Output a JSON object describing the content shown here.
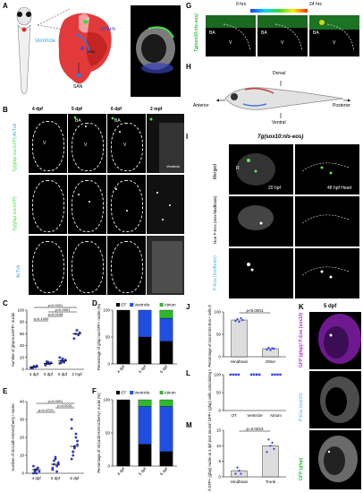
{
  "panel_labels": [
    "A",
    "B",
    "C",
    "D",
    "E",
    "F",
    "G",
    "H",
    "I",
    "J",
    "K",
    "L",
    "M"
  ],
  "panelA": {
    "ventricle": "Ventricle",
    "atrium": "Atrium",
    "avn": "AVN",
    "san": "SAN",
    "ot": "OT"
  },
  "panelB": {
    "cols": [
      "4 dpf",
      "5 dpf",
      "6 dpf",
      "2 mpf"
    ],
    "row_labels": {
      "merge_prefix": "Tg(gfap:nucGFP);",
      "merge_suffix": "AcTub",
      "gfp": "Tg(gfap:nucGFP)",
      "actub": "AcTub"
    },
    "ba": "BA",
    "v": "V",
    "ventricle": "Ventricle"
  },
  "panelG": {
    "t0": "0 hrs",
    "t1": "24 hrs",
    "side": "Tg(sox10:nls-eos)",
    "ba": "BA",
    "v": "V"
  },
  "panelH": {
    "dorsal": "Dorsal",
    "ventral": "Ventral",
    "anterior": "Anterior",
    "posterior": "Posterior"
  },
  "panelI": {
    "title": "Tg(sox10:nls-eos)",
    "rows": [
      "Merged",
      "Non P-Eos (non-hindbrain)",
      "P-Eos (hindbrain)"
    ],
    "t1": "20 hpf",
    "t2": "48 hpf Heart",
    "r": "R"
  },
  "panelK": {
    "title": "5 dpf",
    "rows": [
      "GFP (gfap)/ P-Eos (sox10)",
      "P-Eos (sox10)",
      "GFP (gfap)"
    ]
  },
  "chart_data": [
    {
      "id": "C",
      "type": "scatter",
      "ylabel": "Number of gfap:nucGFP+ nuclei",
      "categories": [
        "4 dpf",
        "5 dpf",
        "6 dpf",
        "2 mpf"
      ],
      "means": [
        4,
        10,
        14,
        60
      ],
      "ylim": [
        0,
        100
      ],
      "yticks": [
        0,
        20,
        40,
        60,
        80,
        100
      ],
      "points": [
        [
          2,
          3,
          5,
          4,
          6,
          3,
          2,
          5
        ],
        [
          8,
          10,
          12,
          9,
          11,
          7,
          13,
          10
        ],
        [
          10,
          14,
          18,
          12,
          16,
          20,
          11,
          15,
          13
        ],
        [
          52,
          60,
          66,
          58,
          62
        ]
      ],
      "pvalues": [
        {
          "from": 0,
          "to": 3,
          "label": "p<0.0001"
        },
        {
          "from": 1,
          "to": 3,
          "label": "p<0.0001"
        },
        {
          "from": 1,
          "to": 2,
          "label": "p=0.0108"
        },
        {
          "from": 0,
          "to": 1,
          "label": "p=0.1092"
        }
      ]
    },
    {
      "id": "D",
      "type": "bar",
      "stacked": true,
      "ylabel": "Percentage of gfap:nucGFP+ nuclei (%)",
      "categories": [
        "4 dpf",
        "5 dpf",
        "6 dpf"
      ],
      "series": [
        {
          "name": "OT",
          "color": "#000000",
          "values": [
            100,
            50,
            42
          ]
        },
        {
          "name": "Ventricle",
          "color": "#1f4fe0",
          "values": [
            0,
            50,
            43
          ]
        },
        {
          "name": "Atrium",
          "color": "#2db82d",
          "values": [
            0,
            0,
            15
          ]
        }
      ],
      "ylim": [
        0,
        100
      ],
      "yticks": [
        0,
        50,
        100
      ],
      "legend": "top"
    },
    {
      "id": "E",
      "type": "scatter",
      "ylabel": "Number of slc1a3b:H2AmCherry+ nuclei",
      "categories": [
        "4 dpf",
        "5 dpf",
        "6 dpf"
      ],
      "means": [
        2,
        5,
        15
      ],
      "ylim": [
        0,
        40
      ],
      "yticks": [
        0,
        10,
        20,
        30,
        40
      ],
      "points": [
        [
          0,
          1,
          2,
          3,
          1,
          4,
          2,
          0,
          3
        ],
        [
          2,
          5,
          8,
          4,
          6,
          3,
          7,
          9,
          1,
          5
        ],
        [
          8,
          12,
          15,
          20,
          18,
          25,
          10,
          14,
          22,
          16,
          30,
          12
        ]
      ],
      "pvalues": [
        {
          "from": 0,
          "to": 2,
          "label": "p<0.0001"
        },
        {
          "from": 1,
          "to": 2,
          "label": "p=0.0031"
        },
        {
          "from": 0,
          "to": 1,
          "label": "p=0.4720"
        }
      ]
    },
    {
      "id": "F",
      "type": "bar",
      "stacked": true,
      "ylabel": "Percentage of slc1a3b:H2AmCherry+ nuclei (%)",
      "categories": [
        "4 dpf",
        "5 dpf",
        "6 dpf"
      ],
      "series": [
        {
          "name": "OT",
          "color": "#000000",
          "values": [
            100,
            33,
            22
          ]
        },
        {
          "name": "Ventricle",
          "color": "#1f4fe0",
          "values": [
            0,
            57,
            68
          ]
        },
        {
          "name": "Atrium",
          "color": "#2db82d",
          "values": [
            0,
            10,
            10
          ]
        }
      ],
      "ylim": [
        0,
        100
      ],
      "yticks": [
        0,
        50,
        100
      ],
      "legend": "top"
    },
    {
      "id": "J",
      "type": "bar",
      "ylabel": "Percentage of sox10:nls-Eos+ cells (%)",
      "categories": [
        "Hindbrain",
        "Other"
      ],
      "values": [
        82,
        18
      ],
      "ylim": [
        0,
        100
      ],
      "yticks": [
        0,
        50,
        100
      ],
      "pvalue": "p<0.0001",
      "points": [
        [
          80,
          84,
          78,
          86,
          82
        ],
        [
          16,
          20,
          15,
          19,
          18
        ]
      ]
    },
    {
      "id": "L",
      "type": "scatter",
      "ylabel": "Percentage of GFP+ (gfap) cells colocalizing with P-Eos (sox10)",
      "categories": [
        "OT",
        "Ventricle",
        "Atrium"
      ],
      "values": [
        100,
        100,
        100
      ],
      "ylim": [
        0,
        100
      ],
      "yticks": [
        0,
        50,
        100
      ]
    },
    {
      "id": "M",
      "type": "bar",
      "ylabel": "Number of GFP+ (gfap) nuclei at 4 dpf post neural crest ablation",
      "categories": [
        "Hindbrain",
        "Trunk"
      ],
      "values": [
        2,
        10
      ],
      "ylim": [
        0,
        15
      ],
      "yticks": [
        0,
        5,
        10,
        15
      ],
      "pvalue": "p=0.0023",
      "points": [
        [
          1,
          3,
          2,
          1
        ],
        [
          8,
          12,
          10,
          11,
          9
        ]
      ]
    }
  ]
}
